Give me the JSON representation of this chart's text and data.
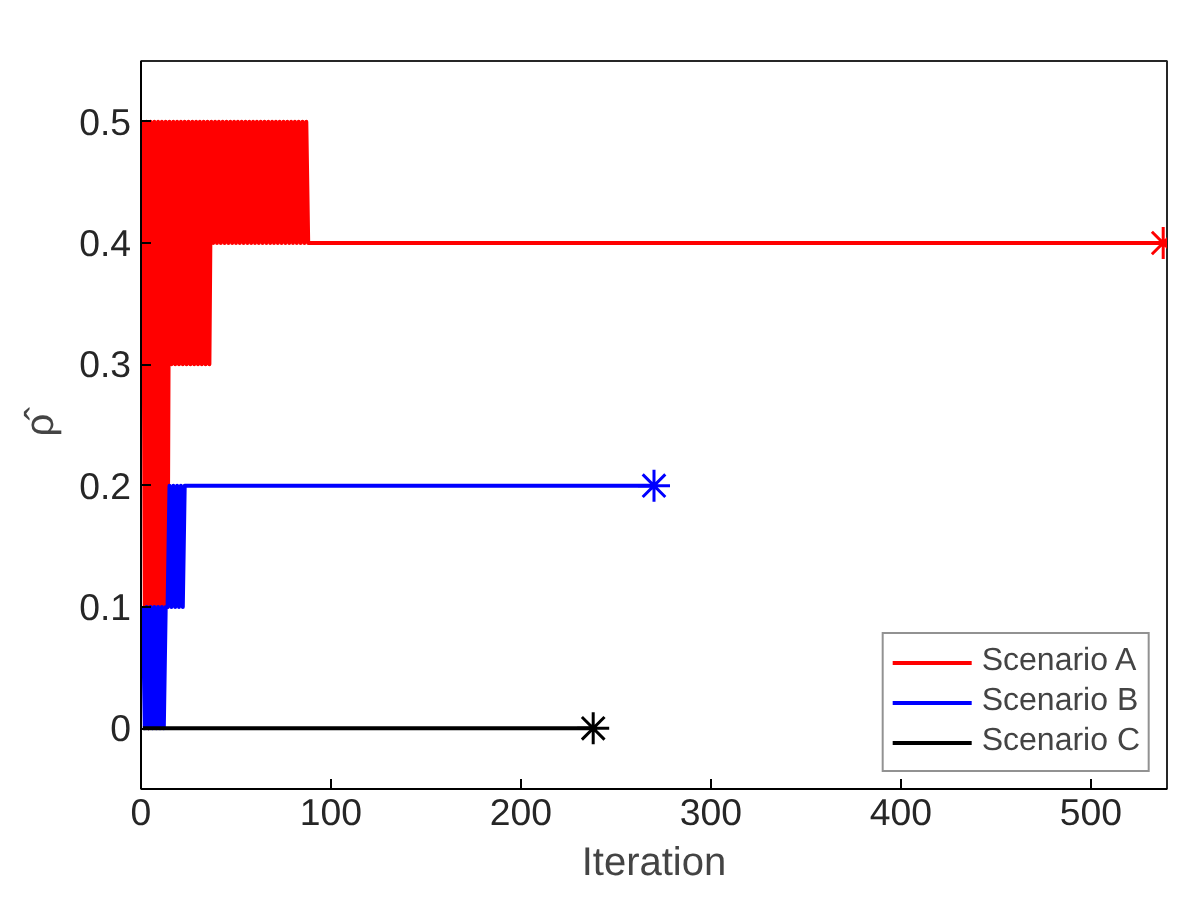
{
  "chart_data": {
    "type": "line",
    "xlabel": "Iteration",
    "ylabel": "ρ̂",
    "xlim": [
      0,
      540
    ],
    "ylim": [
      -0.05,
      0.55
    ],
    "xticks": [
      0,
      100,
      200,
      300,
      400,
      500
    ],
    "yticks": [
      0,
      0.1,
      0.2,
      0.3,
      0.4,
      0.5
    ],
    "grid": false,
    "legend": "bottom right",
    "series": [
      {
        "name": "Scenario A",
        "color": "#ff0000",
        "x": [
          1,
          2,
          3,
          4,
          5,
          6,
          7,
          8,
          9,
          10,
          11,
          12,
          13,
          14,
          15,
          16,
          17,
          18,
          19,
          20,
          21,
          22,
          23,
          24,
          25,
          26,
          27,
          28,
          29,
          30,
          31,
          32,
          33,
          34,
          35,
          36,
          37,
          38,
          39,
          40,
          41,
          42,
          43,
          44,
          45,
          46,
          47,
          48,
          49,
          50,
          51,
          52,
          53,
          54,
          55,
          56,
          57,
          58,
          59,
          60,
          61,
          62,
          63,
          64,
          65,
          66,
          67,
          68,
          69,
          70,
          71,
          72,
          73,
          74,
          75,
          76,
          77,
          78,
          79,
          80,
          81,
          82,
          83,
          84,
          85,
          86,
          87,
          88,
          538
        ],
        "values": [
          0.5,
          0.1,
          0.5,
          0,
          0.5,
          0.1,
          0.5,
          0.1,
          0.5,
          0.1,
          0.5,
          0.1,
          0.5,
          0.1,
          0.5,
          0.3,
          0.5,
          0.3,
          0.5,
          0.3,
          0.5,
          0.3,
          0.5,
          0.3,
          0.5,
          0.3,
          0.5,
          0.3,
          0.5,
          0.3,
          0.5,
          0.3,
          0.5,
          0.3,
          0.5,
          0.3,
          0.5,
          0.4,
          0.5,
          0.4,
          0.5,
          0.4,
          0.5,
          0.4,
          0.5,
          0.4,
          0.5,
          0.4,
          0.5,
          0.4,
          0.5,
          0.4,
          0.5,
          0.4,
          0.5,
          0.4,
          0.5,
          0.4,
          0.5,
          0.4,
          0.5,
          0.4,
          0.5,
          0.4,
          0.5,
          0.4,
          0.5,
          0.4,
          0.5,
          0.4,
          0.5,
          0.4,
          0.5,
          0.4,
          0.5,
          0.4,
          0.5,
          0.4,
          0.5,
          0.4,
          0.5,
          0.4,
          0.5,
          0.4,
          0.5,
          0.4,
          0.5,
          0.4,
          0.4
        ]
      },
      {
        "name": "Scenario B",
        "color": "#0000ff",
        "x": [
          1,
          2,
          3,
          4,
          5,
          6,
          7,
          8,
          9,
          10,
          11,
          12,
          13,
          14,
          15,
          16,
          17,
          18,
          19,
          20,
          21,
          22,
          23,
          270
        ],
        "values": [
          0.1,
          0,
          0.1,
          0,
          0.1,
          0,
          0.1,
          0,
          0.1,
          0,
          0.1,
          0,
          0.1,
          0.1,
          0.2,
          0.1,
          0.2,
          0.1,
          0.2,
          0.1,
          0.2,
          0.1,
          0.2,
          0.2
        ]
      },
      {
        "name": "Scenario C",
        "color": "#000000",
        "x": [
          1,
          238
        ],
        "values": [
          0,
          0
        ]
      },
      {
        "type": "scatter",
        "marker": "cross",
        "color": "#ff0000",
        "x": [
          538
        ],
        "values": [
          0.4
        ]
      },
      {
        "type": "scatter",
        "marker": "cross",
        "color": "#0000ff",
        "x": [
          270
        ],
        "values": [
          0.2
        ]
      },
      {
        "type": "scatter",
        "marker": "cross",
        "color": "#000000",
        "x": [
          238
        ],
        "values": [
          0
        ]
      }
    ]
  }
}
